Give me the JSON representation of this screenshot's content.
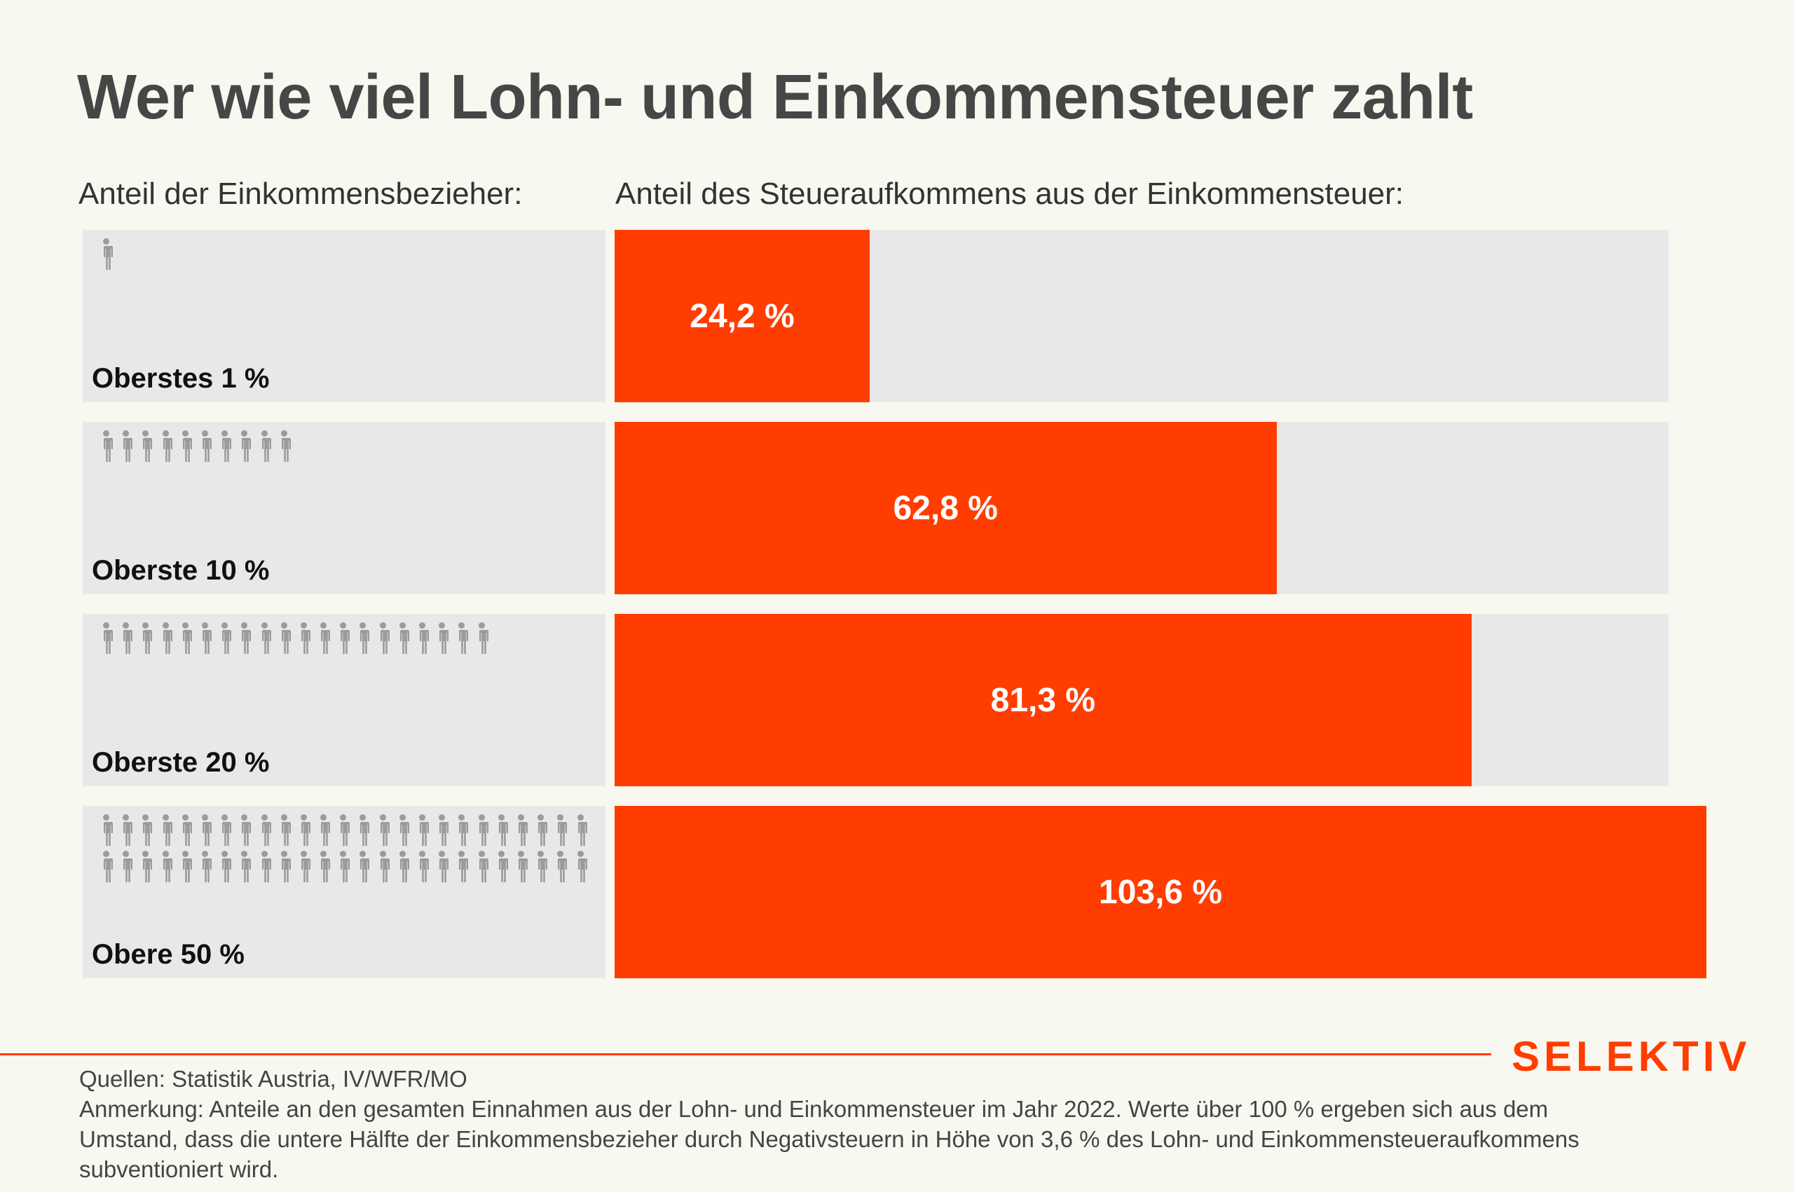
{
  "title": "Wer wie viel Lohn- und Einkommensteuer zahlt",
  "subheadings": {
    "left": "Anteil der Einkommensbezieher:",
    "right": "Anteil des Steueraufkommens aus der Einkommensteuer:"
  },
  "colors": {
    "background": "#F8F7F0",
    "panel": "#E9E7E8",
    "bar": "#FF3D00",
    "figure": "#9B9B9B",
    "brand": "#FF3D00"
  },
  "chart_data": {
    "type": "bar",
    "orientation": "horizontal",
    "title": "Wer wie viel Lohn- und Einkommensteuer zahlt",
    "xlabel": "Anteil des Steueraufkommens aus der Einkommensteuer",
    "ylabel": "Anteil der Einkommensbezieher",
    "categories": [
      "Oberstes 1 %",
      "Oberste 10 %",
      "Oberste 20 %",
      "Obere 50 %"
    ],
    "values": [
      24.2,
      62.8,
      81.3,
      103.6
    ],
    "value_labels": [
      "24,2 %",
      "62,8 %",
      "81,3 %",
      "103,6 %"
    ],
    "figure_counts": [
      1,
      10,
      20,
      50
    ],
    "track_max": 100,
    "unit": "%",
    "grid": false
  },
  "brand": "SELEKTIV",
  "footer": {
    "lines": [
      "Quellen: Statistik Austria, IV/WFR/MO",
      "Anmerkung: Anteile an den gesamten Einnahmen aus der Lohn- und Einkommensteuer im Jahr 2022. Werte über 100 % ergeben sich aus dem",
      "Umstand, dass die untere Hälfte der Einkommensbezieher durch Negativsteuern in Höhe von 3,6 % des Lohn- und Einkommensteueraufkommens",
      "subventioniert wird."
    ]
  }
}
